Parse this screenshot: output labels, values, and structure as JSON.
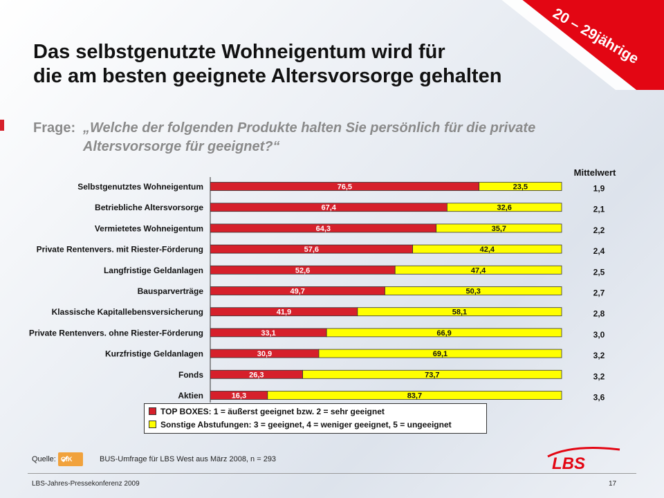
{
  "slide": {
    "title_line1": "Das selbstgenutzte Wohneigentum wird für",
    "title_line2": "die am besten geeignete Altersvorsorge gehalten",
    "banner_text": "20 – 29jährige",
    "question_label": "Frage:",
    "question_line1": "„Welche der folgenden Produkte halten Sie persönlich für die private",
    "question_line2": "Altersvorsorge für geeignet?“",
    "legend_top": "TOP BOXES: 1 = äußerst geeignet bzw. 2 = sehr geeignet",
    "legend_other": "Sonstige Abstufungen: 3 = geeignet, 4 = weniger geeignet, 5 = ungeeignet",
    "source_label": "Quelle:",
    "source_logo_text": "GfK",
    "source_text": "BUS-Umfrage für LBS West aus März 2008, n = 293",
    "conference": "LBS-Jahres-Pressekonferenz 2009",
    "page_number": "17",
    "lbs_logo_text": "LBS"
  },
  "colors": {
    "top_boxes": "#d6202b",
    "other": "#ffff00",
    "banner": "#e30613",
    "logo_red": "#e30613"
  },
  "chart_data": {
    "type": "bar",
    "orientation": "horizontal-stacked-100",
    "mean_header": "Mittelwert",
    "categories": [
      "Selbstgenutztes Wohneigentum",
      "Betriebliche Altersvorsorge",
      "Vermietetes Wohneigentum",
      "Private Rentenvers. mit Riester-Förderung",
      "Langfristige Geldanlagen",
      "Bausparverträge",
      "Klassische Kapitallebensversicherung",
      "Private Rentenvers. ohne Riester-Förderung",
      "Kurzfristige Geldanlagen",
      "Fonds",
      "Aktien"
    ],
    "series": [
      {
        "name": "TOP BOXES: 1 = äußerst geeignet bzw. 2 = sehr geeignet",
        "values": [
          76.5,
          67.4,
          64.3,
          57.6,
          52.6,
          49.7,
          41.9,
          33.1,
          30.9,
          26.3,
          16.3
        ],
        "labels": [
          "76,5",
          "67,4",
          "64,3",
          "57,6",
          "52,6",
          "49,7",
          "41,9",
          "33,1",
          "30,9",
          "26,3",
          "16,3"
        ]
      },
      {
        "name": "Sonstige Abstufungen: 3 = geeignet, 4 = weniger geeignet, 5 = ungeeignet",
        "values": [
          23.5,
          32.6,
          35.7,
          42.4,
          47.4,
          50.3,
          58.1,
          66.9,
          69.1,
          73.7,
          83.7
        ],
        "labels": [
          "23,5",
          "32,6",
          "35,7",
          "42,4",
          "47,4",
          "50,3",
          "58,1",
          "66,9",
          "69,1",
          "73,7",
          "83,7"
        ]
      }
    ],
    "means": [
      "1,9",
      "2,1",
      "2,2",
      "2,4",
      "2,5",
      "2,7",
      "2,8",
      "3,0",
      "3,2",
      "3,2",
      "3,6"
    ],
    "xlim": [
      0,
      100
    ]
  }
}
